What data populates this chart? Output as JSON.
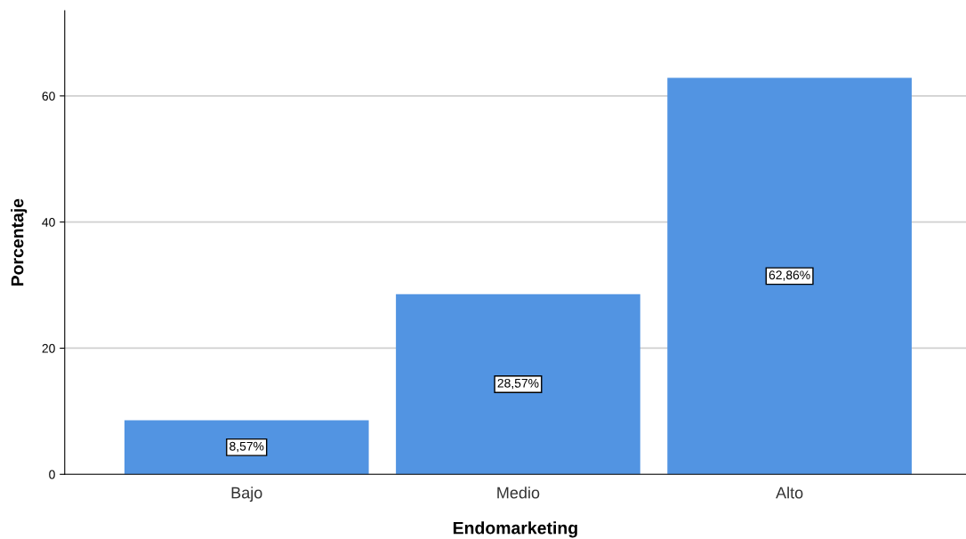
{
  "chart_data": {
    "type": "bar",
    "xlabel": "Endomarketing",
    "ylabel": "Porcentaje",
    "categories": [
      "Bajo",
      "Medio",
      "Alto"
    ],
    "values": [
      8.57,
      28.57,
      62.86
    ],
    "value_labels": [
      "8,57%",
      "28,57%",
      "62,86%"
    ],
    "color": "#5294e2",
    "ylim": [
      0,
      73.5
    ],
    "yticks": [
      0,
      20,
      40,
      60
    ],
    "grid": "y"
  }
}
